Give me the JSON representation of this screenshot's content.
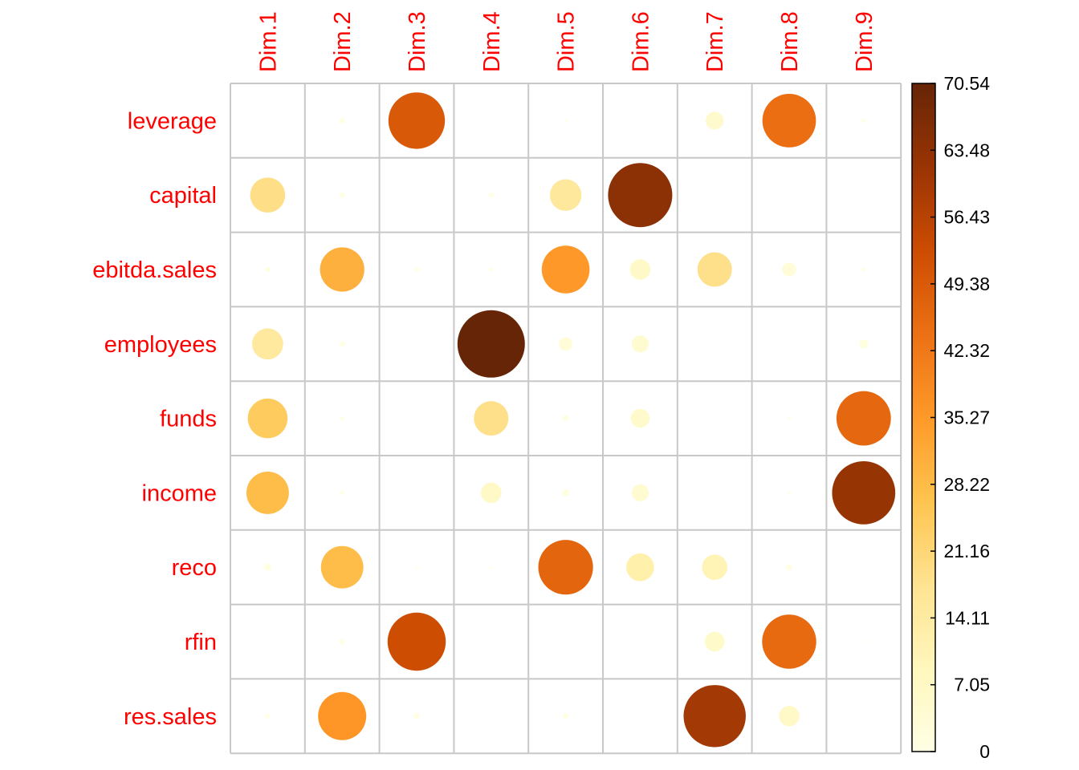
{
  "chart_data": {
    "type": "heatmap",
    "title": "",
    "rows": [
      "leverage",
      "capital",
      "ebitda.sales",
      "employees",
      "funds",
      "income",
      "reco",
      "rfin",
      "res.sales"
    ],
    "columns": [
      "Dim.1",
      "Dim.2",
      "Dim.3",
      "Dim.4",
      "Dim.5",
      "Dim.6",
      "Dim.7",
      "Dim.8",
      "Dim.9"
    ],
    "values": [
      [
        0.0,
        0.5,
        49.5,
        0.0,
        0.1,
        0.0,
        5.0,
        44.5,
        0.3
      ],
      [
        19.0,
        0.5,
        0.0,
        0.4,
        15.5,
        64.0,
        0.0,
        0.0,
        0.0
      ],
      [
        0.4,
        30.5,
        0.4,
        0.2,
        35.5,
        6.5,
        18.5,
        3.0,
        0.2
      ],
      [
        15.0,
        0.5,
        0.0,
        70.54,
        2.8,
        4.5,
        0.0,
        0.0,
        1.2
      ],
      [
        24.5,
        0.2,
        0.0,
        18.5,
        0.6,
        5.5,
        0.0,
        0.1,
        46.0
      ],
      [
        28.0,
        0.3,
        0.0,
        6.5,
        0.8,
        4.5,
        0.0,
        0.1,
        62.0
      ],
      [
        0.8,
        28.0,
        0.1,
        0.1,
        46.5,
        12.0,
        10.0,
        0.6,
        0.0
      ],
      [
        0.0,
        0.4,
        52.5,
        0.0,
        0.0,
        0.0,
        6.0,
        45.5,
        0.1
      ],
      [
        0.4,
        36.0,
        0.6,
        0.0,
        0.5,
        0.0,
        60.0,
        6.5,
        0.0
      ]
    ],
    "colorbar": {
      "ticks": [
        "0",
        "7.05",
        "14.11",
        "21.16",
        "28.22",
        "35.27",
        "42.32",
        "49.38",
        "56.43",
        "63.48",
        "70.54"
      ],
      "min": 0,
      "max": 70.54,
      "colors": [
        "#FFFFE5",
        "#FFF7BC",
        "#FEE391",
        "#FEC44F",
        "#FE9929",
        "#EC7014",
        "#CC4C02",
        "#993404",
        "#662506"
      ]
    },
    "label_color": "#FF0000",
    "grid": true,
    "legend_position": "right"
  }
}
